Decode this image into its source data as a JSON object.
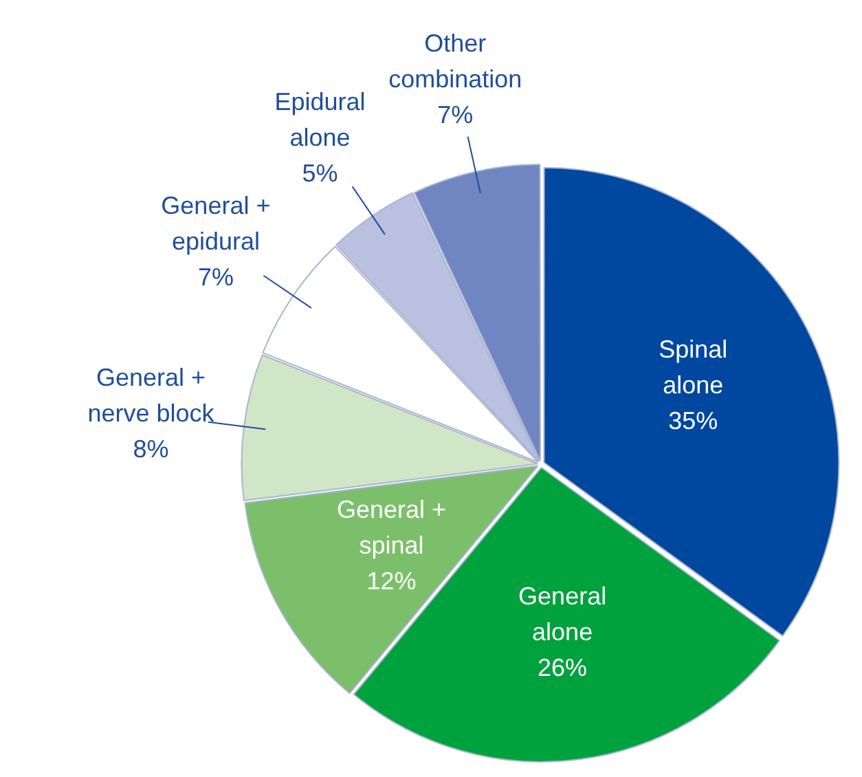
{
  "chart_data": {
    "type": "pie",
    "categories": [
      "Spinal alone",
      "General alone",
      "General + spinal",
      "General + nerve block",
      "General + epidural",
      "Epidural alone",
      "Other combination"
    ],
    "values": [
      35,
      26,
      12,
      8,
      7,
      5,
      7
    ],
    "value_labels": [
      "35%",
      "26%",
      "12%",
      "8%",
      "7%",
      "5%",
      "7%"
    ],
    "colors": [
      "#0047a0",
      "#00a23e",
      "#7cbf6a",
      "#d1e6c6",
      "#ffffff",
      "#b9c0e0",
      "#6f86c2"
    ],
    "legend": false
  }
}
